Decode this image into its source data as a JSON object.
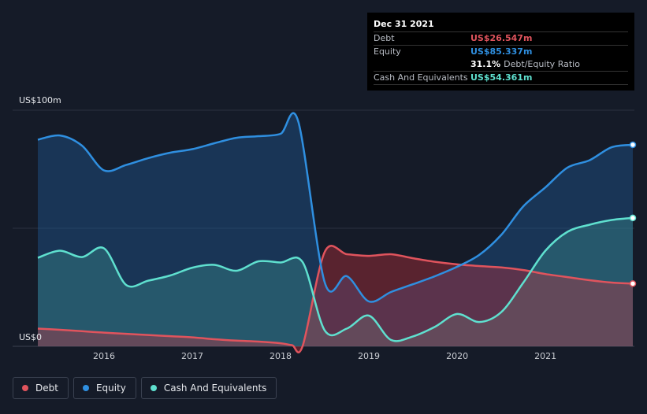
{
  "tooltip": {
    "date": "Dec 31 2021",
    "rows": [
      {
        "label": "Debt",
        "value": "US$26.547m",
        "color": "#e0545d"
      },
      {
        "label": "Equity",
        "value": "US$85.337m",
        "color": "#2f8fe0"
      }
    ],
    "ratio_value": "31.1%",
    "ratio_label": "Debt/Equity Ratio",
    "cash": {
      "label": "Cash And Equivalents",
      "value": "US$54.361m",
      "color": "#5fe0cf"
    }
  },
  "legend": [
    {
      "label": "Debt",
      "color": "#e0545d"
    },
    {
      "label": "Equity",
      "color": "#2f8fe0"
    },
    {
      "label": "Cash And Equivalents",
      "color": "#5fe0cf"
    }
  ],
  "chart_data": {
    "type": "area",
    "ylabel_top": "US$100m",
    "ylabel_bottom": "US$0",
    "ylim": [
      0,
      100
    ],
    "xlim": [
      2015.25,
      2021.99
    ],
    "x_ticks": [
      2016,
      2017,
      2018,
      2019,
      2020,
      2021
    ],
    "x_tick_labels": [
      "2016",
      "2017",
      "2018",
      "2019",
      "2020",
      "2021"
    ],
    "grid": true,
    "legend_position": "bottom-left",
    "series": [
      {
        "name": "Debt",
        "color": "#e0545d",
        "points": [
          [
            2015.25,
            7.5
          ],
          [
            2015.5,
            7.0
          ],
          [
            2015.75,
            6.4
          ],
          [
            2016.0,
            5.8
          ],
          [
            2016.25,
            5.3
          ],
          [
            2016.5,
            4.8
          ],
          [
            2016.75,
            4.3
          ],
          [
            2017.0,
            3.8
          ],
          [
            2017.25,
            3.0
          ],
          [
            2017.5,
            2.4
          ],
          [
            2017.75,
            2.0
          ],
          [
            2018.0,
            1.3
          ],
          [
            2018.13,
            0.5
          ],
          [
            2018.25,
            0.2
          ],
          [
            2018.5,
            40.0
          ],
          [
            2018.75,
            39.0
          ],
          [
            2019.0,
            38.3
          ],
          [
            2019.25,
            39.0
          ],
          [
            2019.5,
            37.3
          ],
          [
            2019.75,
            35.8
          ],
          [
            2020.0,
            34.7
          ],
          [
            2020.25,
            34.0
          ],
          [
            2020.5,
            33.4
          ],
          [
            2020.75,
            32.3
          ],
          [
            2021.0,
            30.6
          ],
          [
            2021.25,
            29.3
          ],
          [
            2021.5,
            28.0
          ],
          [
            2021.75,
            27.0
          ],
          [
            2021.99,
            26.547
          ]
        ]
      },
      {
        "name": "Equity",
        "color": "#2f8fe0",
        "points": [
          [
            2015.25,
            87.5
          ],
          [
            2015.5,
            89.3
          ],
          [
            2015.75,
            85.0
          ],
          [
            2016.0,
            74.5
          ],
          [
            2016.25,
            76.8
          ],
          [
            2016.5,
            79.7
          ],
          [
            2016.75,
            82.0
          ],
          [
            2017.0,
            83.5
          ],
          [
            2017.25,
            86.0
          ],
          [
            2017.5,
            88.3
          ],
          [
            2017.75,
            89.0
          ],
          [
            2018.0,
            90.0
          ],
          [
            2018.2,
            95.2
          ],
          [
            2018.5,
            27.0
          ],
          [
            2018.75,
            29.7
          ],
          [
            2019.0,
            19.0
          ],
          [
            2019.25,
            23.0
          ],
          [
            2019.5,
            26.3
          ],
          [
            2019.75,
            29.7
          ],
          [
            2020.0,
            33.7
          ],
          [
            2020.25,
            38.7
          ],
          [
            2020.5,
            47.2
          ],
          [
            2020.75,
            59.3
          ],
          [
            2021.0,
            67.3
          ],
          [
            2021.25,
            75.7
          ],
          [
            2021.5,
            78.8
          ],
          [
            2021.75,
            84.3
          ],
          [
            2021.99,
            85.337
          ]
        ]
      },
      {
        "name": "Cash And Equivalents",
        "color": "#5fe0cf",
        "points": [
          [
            2015.25,
            37.5
          ],
          [
            2015.5,
            40.5
          ],
          [
            2015.75,
            37.8
          ],
          [
            2016.0,
            41.5
          ],
          [
            2016.25,
            26.0
          ],
          [
            2016.5,
            27.8
          ],
          [
            2016.75,
            30.0
          ],
          [
            2017.0,
            33.3
          ],
          [
            2017.25,
            34.5
          ],
          [
            2017.5,
            32.0
          ],
          [
            2017.75,
            36.0
          ],
          [
            2018.0,
            35.5
          ],
          [
            2018.25,
            35.6
          ],
          [
            2018.5,
            6.7
          ],
          [
            2018.75,
            7.5
          ],
          [
            2019.0,
            13.0
          ],
          [
            2019.25,
            2.7
          ],
          [
            2019.5,
            4.2
          ],
          [
            2019.75,
            8.3
          ],
          [
            2020.0,
            13.7
          ],
          [
            2020.25,
            10.3
          ],
          [
            2020.5,
            14.5
          ],
          [
            2020.75,
            27.0
          ],
          [
            2021.0,
            40.5
          ],
          [
            2021.25,
            48.5
          ],
          [
            2021.5,
            51.5
          ],
          [
            2021.75,
            53.5
          ],
          [
            2021.99,
            54.361
          ]
        ]
      }
    ]
  }
}
